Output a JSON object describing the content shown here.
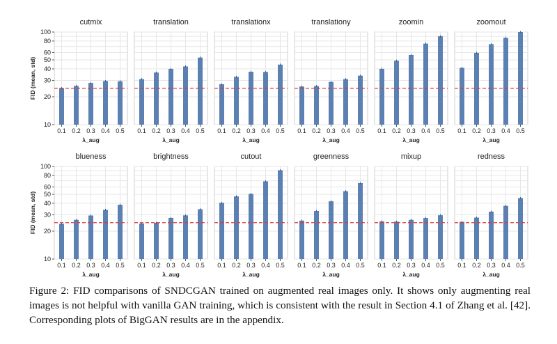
{
  "caption": "Figure 2: FID comparisons of SNDCGAN trained on augmented real images only. It shows only augmenting real images is not helpful with vanilla GAN training, which is consistent with the result in Section 4.1 of Zhang et al. [42]. Corresponding plots of BigGAN results are in the appendix.",
  "colors": {
    "bar": "#5b80b2",
    "baseline": "#e03a3a",
    "grid": "#e6e6e6",
    "frame": "#cfcfcf"
  },
  "chart_data": {
    "type": "bar",
    "yscale": "log",
    "ylim": [
      10,
      100
    ],
    "yticks": [
      10,
      20,
      30,
      40,
      50,
      60,
      80,
      100
    ],
    "ylabel": "FID (mean, std)",
    "xlabel": "λ_aug",
    "categories": [
      "0.1",
      "0.2",
      "0.3",
      "0.4",
      "0.5"
    ],
    "baseline": 24.7,
    "grid": true,
    "panels": [
      {
        "title": "cutmix",
        "values": [
          24.8,
          26.2,
          28.2,
          29.6,
          29.4
        ]
      },
      {
        "title": "translation",
        "values": [
          31.0,
          36.5,
          40.0,
          42.5,
          53.0
        ]
      },
      {
        "title": "translationx",
        "values": [
          27.3,
          32.8,
          37.2,
          37.0,
          44.5
        ]
      },
      {
        "title": "translationy",
        "values": [
          25.8,
          26.1,
          28.9,
          31.0,
          33.8
        ]
      },
      {
        "title": "zoomin",
        "values": [
          40.0,
          49.0,
          56.5,
          75.0,
          90.0
        ]
      },
      {
        "title": "zoomout",
        "values": [
          41.0,
          59.5,
          74.0,
          86.5,
          100.0
        ]
      },
      {
        "title": "blueness",
        "values": [
          24.0,
          26.5,
          29.5,
          34.0,
          38.5
        ]
      },
      {
        "title": "brightness",
        "values": [
          24.2,
          24.6,
          27.8,
          29.6,
          34.5
        ]
      },
      {
        "title": "cutout",
        "values": [
          40.5,
          47.5,
          50.5,
          69.0,
          91.0
        ]
      },
      {
        "title": "greenness",
        "values": [
          26.0,
          33.0,
          42.0,
          54.0,
          66.0
        ]
      },
      {
        "title": "mixup",
        "values": [
          25.5,
          25.3,
          26.5,
          27.7,
          29.7
        ]
      },
      {
        "title": "redness",
        "values": [
          25.2,
          28.0,
          32.5,
          37.5,
          45.5
        ]
      }
    ]
  }
}
